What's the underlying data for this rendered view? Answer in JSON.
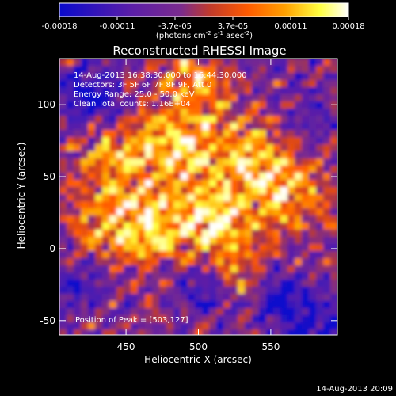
{
  "colorbar": {
    "stops": [
      "#0a0acc",
      "#5b1ea8",
      "#7a2b8e",
      "#c03a2c",
      "#ff5a00",
      "#ffa000",
      "#ffff40",
      "#ffffff"
    ],
    "ticks": [
      "-0.00018",
      "-0.00011",
      "-3.7e-05",
      "3.7e-05",
      "0.00011",
      "0.00018"
    ],
    "unit_prefix": "(photons cm",
    "unit_exp1": "-2",
    "unit_mid": " s",
    "unit_exp2": "-1",
    "unit_suffix": " asec",
    "unit_exp3": "-2",
    "unit_close": ")"
  },
  "chart_data": {
    "type": "heatmap",
    "title": "Reconstructed RHESSI Image",
    "xlabel": "Heliocentric X (arcsec)",
    "ylabel": "Heliocentric Y (arcsec)",
    "xlim": [
      404,
      596
    ],
    "ylim": [
      -60,
      132
    ],
    "x_ticks": [
      "450",
      "500",
      "550"
    ],
    "x_tick_values": [
      450,
      500,
      550
    ],
    "y_ticks": [
      "-50",
      "0",
      "50",
      "100"
    ],
    "y_tick_values": [
      -50,
      0,
      50,
      100
    ],
    "annotations": [
      "14-Aug-2013 16:38:30.000 to 16:44:30.000",
      "Detectors: 3F 5F 6F 7F 8F 9F, Att 0",
      "Energy Range: 25.0 - 50.0 keV",
      "Clean     Total counts: 1.16E+04"
    ],
    "peak_label": "Position of Peak = [503,127]",
    "peak": [
      503,
      127
    ]
  },
  "footer": {
    "timestamp": "14-Aug-2013 20:09"
  }
}
